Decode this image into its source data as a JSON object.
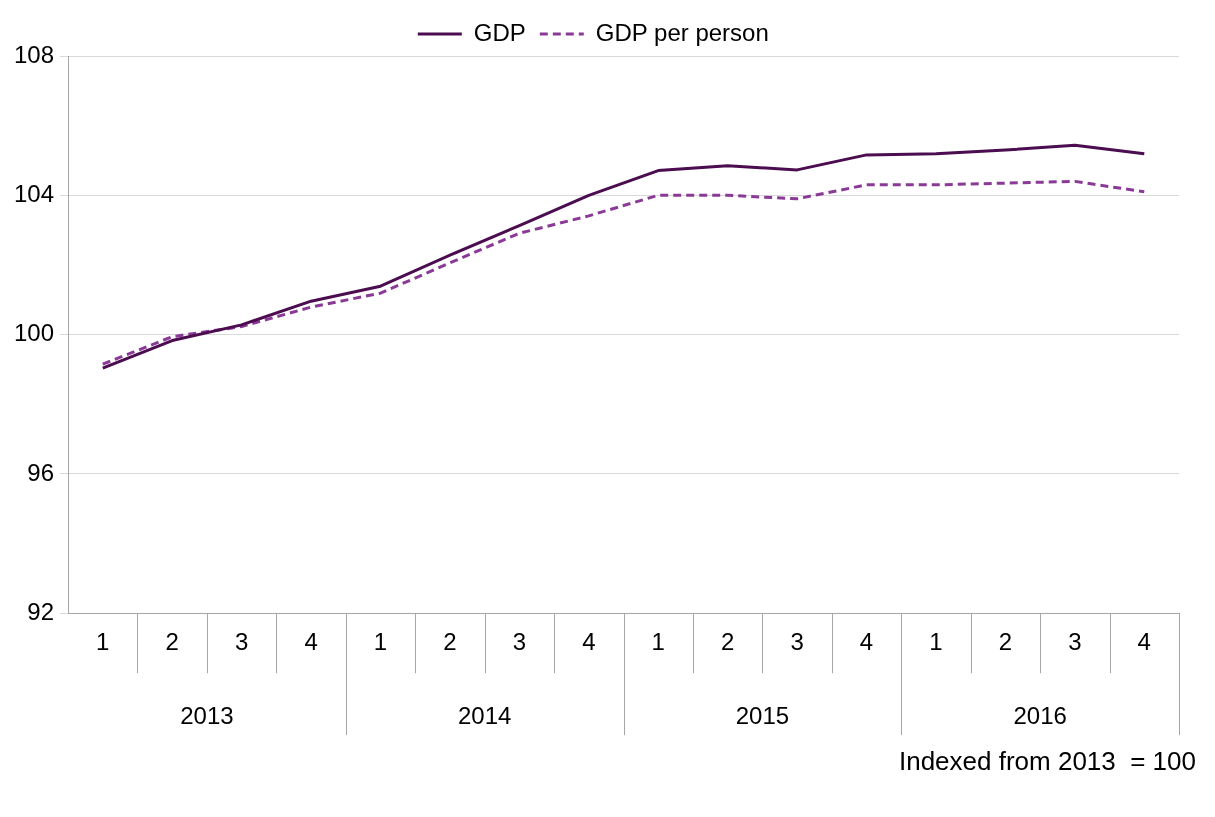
{
  "chart_data": {
    "type": "line",
    "categories": [
      "1",
      "2",
      "3",
      "4",
      "1",
      "2",
      "3",
      "4",
      "1",
      "2",
      "3",
      "4",
      "1",
      "2",
      "3",
      "4"
    ],
    "series": [
      {
        "name": "GDP",
        "color": "#4b0d4f",
        "line_style": "solid",
        "values": [
          99.04,
          99.83,
          100.28,
          100.96,
          101.39,
          102.28,
          103.13,
          104.0,
          104.71,
          104.85,
          104.73,
          105.16,
          105.19,
          105.3,
          105.44,
          105.19
        ]
      },
      {
        "name": "GDP per person",
        "color": "#8a3a96",
        "line_style": "dashed",
        "values": [
          99.15,
          99.94,
          100.23,
          100.79,
          101.19,
          102.06,
          102.91,
          103.41,
          104.0,
          104.0,
          103.9,
          104.3,
          104.3,
          104.35,
          104.4,
          104.1
        ]
      }
    ],
    "ylim": [
      92,
      108
    ],
    "yticks": [
      92,
      96,
      100,
      104,
      108
    ],
    "grid": "y",
    "legend": "top",
    "marker": "none",
    "annotations": [
      "2013",
      "2014",
      "2015",
      "2016",
      "Indexed from 2013  = 100"
    ]
  }
}
